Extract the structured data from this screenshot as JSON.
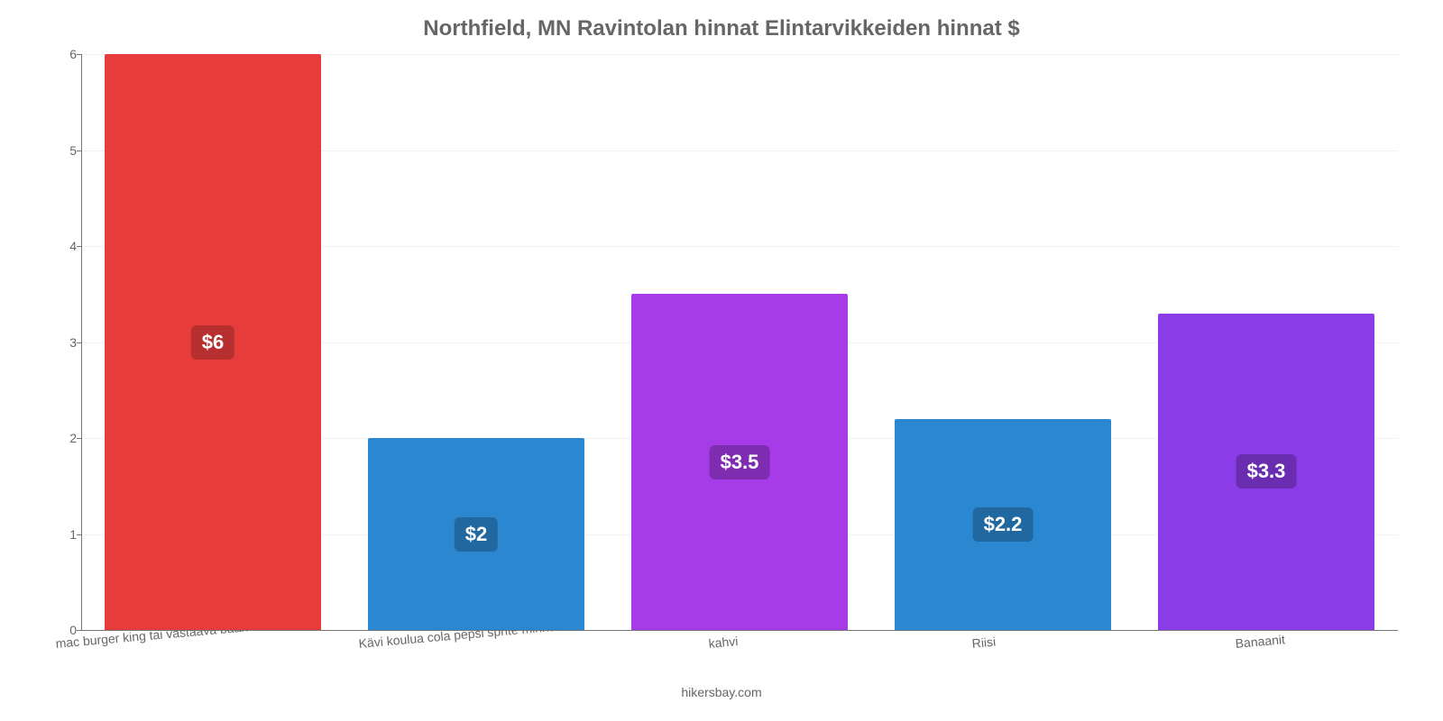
{
  "chart": {
    "type": "bar",
    "title": "Northfield, MN Ravintolan hinnat Elintarvikkeiden hinnat $",
    "title_fontsize": 24,
    "title_color": "#666666",
    "caption": "hikersbay.com",
    "background_color": "#ffffff",
    "grid_color": "#f2f2f2",
    "axis_color": "#777777",
    "tick_font_color": "#666666",
    "tick_fontsize": 14,
    "label_fontsize": 22,
    "ylim": [
      0,
      6
    ],
    "ytick_step": 1,
    "yticks": [
      0,
      1,
      2,
      3,
      4,
      5,
      6
    ],
    "bar_width_pct": 82,
    "categories": [
      "mac burger king tai vastaava baari",
      "Kävi koulua cola pepsi sprite mirinda",
      "kahvi",
      "Riisi",
      "Banaanit"
    ],
    "values": [
      6,
      2,
      3.5,
      2.2,
      3.3
    ],
    "value_labels": [
      "$6",
      "$2",
      "$3.5",
      "$2.2",
      "$3.3"
    ],
    "bar_colors": [
      "#e73c3c",
      "#2a87d0",
      "#a63ce7",
      "#2a87d0",
      "#8a3ce7"
    ],
    "label_bg_colors": [
      "#b72f2f",
      "#20689f",
      "#7f2db0",
      "#20689f",
      "#6a2db0"
    ],
    "label_text_color": "#ffffff"
  }
}
